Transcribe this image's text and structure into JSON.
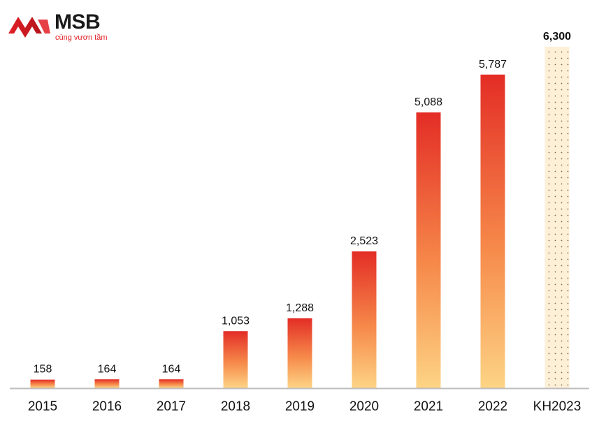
{
  "brand": {
    "name": "MSB",
    "tagline": "cùng vươn tầm",
    "colors": {
      "red": "#e21f26",
      "dark_red": "#b3151b",
      "text": "#1a1a1a"
    }
  },
  "chart_data": {
    "type": "bar",
    "categories": [
      "2015",
      "2016",
      "2017",
      "2018",
      "2019",
      "2020",
      "2021",
      "2022",
      "KH2023"
    ],
    "values": [
      158,
      164,
      164,
      1053,
      1288,
      2523,
      5088,
      5787,
      6300
    ],
    "value_labels": [
      "158",
      "164",
      "164",
      "1,053",
      "1,288",
      "2,523",
      "5,088",
      "5,787",
      "6,300"
    ],
    "highlight": {
      "category": "KH2023",
      "style": "dotted",
      "label_bold": true
    },
    "title": "",
    "xlabel": "",
    "ylabel": "",
    "ylim": [
      0,
      6300
    ],
    "grid": false,
    "legend": "none",
    "colors": {
      "gradient_top": "#e32d26",
      "gradient_bottom": "#fdd485",
      "forecast_fill": "#fdf0d6",
      "forecast_dot": "#7a6a55",
      "axis": "#bdbdbd"
    }
  }
}
